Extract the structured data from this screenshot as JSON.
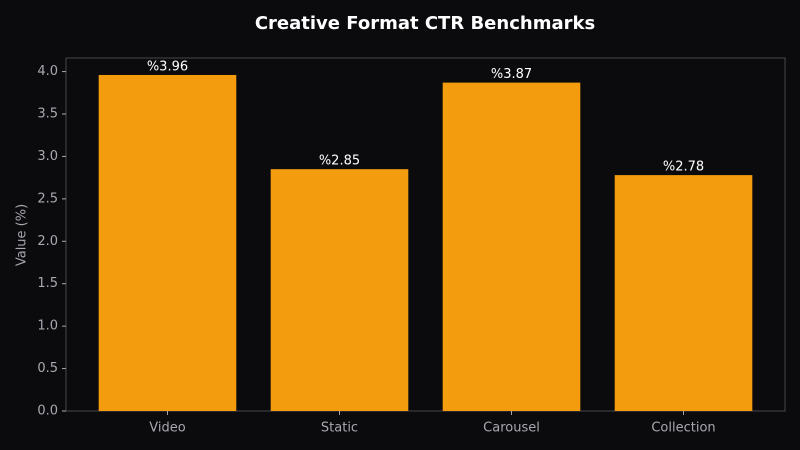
{
  "chart_data": {
    "type": "bar",
    "title": "Creative Format CTR Benchmarks",
    "y_label": "Value (%)",
    "categories": [
      "Video",
      "Static",
      "Carousel",
      "Collection"
    ],
    "values": [
      3.96,
      2.85,
      3.87,
      2.78
    ],
    "value_labels": [
      "%3.96",
      "%2.85",
      "%3.87",
      "%2.78"
    ],
    "color": "#f39c0e",
    "ylim": [
      0,
      4.16
    ],
    "yticks": [
      {
        "value": 0,
        "label": "0.0"
      },
      0.5,
      {
        "value": 1,
        "label": "1.0"
      },
      1.5,
      {
        "value": 2,
        "label": "2.0"
      },
      2.5,
      {
        "value": 3,
        "label": "3.0"
      },
      3.5,
      {
        "value": 4,
        "label": "4.0"
      }
    ]
  }
}
